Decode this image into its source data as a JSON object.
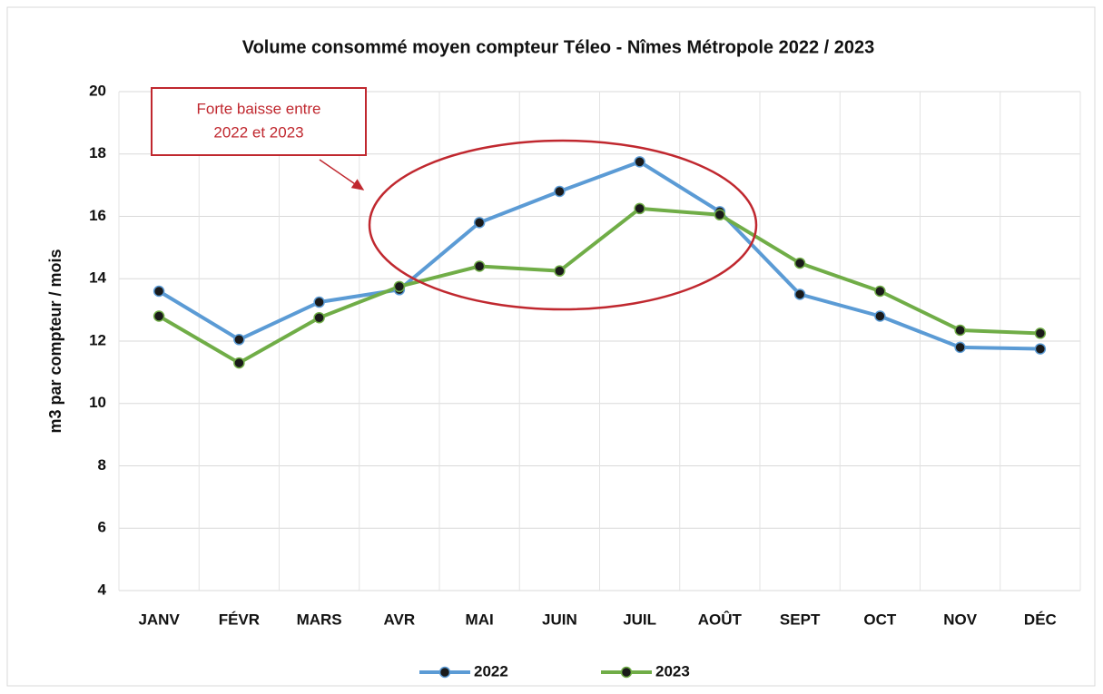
{
  "chart_data": {
    "type": "line",
    "title": "Volume consommé moyen compteur Téleo - Nîmes Métropole 2022 / 2023",
    "y_label": "m3 par compteur / mois",
    "annotation": [
      "Forte baisse entre",
      "2022 et 2023"
    ],
    "categories": [
      "JANV",
      "FÉVR",
      "MARS",
      "AVR",
      "MAI",
      "JUIN",
      "JUIL",
      "AOÛT",
      "SEPT",
      "OCT",
      "NOV",
      "DÉC"
    ],
    "series": [
      {
        "name": "2022",
        "color": "#5b9bd5",
        "values": [
          13.6,
          12.05,
          13.25,
          13.65,
          15.8,
          16.8,
          17.75,
          16.15,
          13.5,
          12.8,
          11.8,
          11.75
        ]
      },
      {
        "name": "2023",
        "color": "#70ad47",
        "values": [
          12.8,
          11.3,
          12.75,
          13.75,
          14.4,
          14.25,
          16.25,
          16.05,
          14.5,
          13.6,
          12.35,
          12.25
        ]
      }
    ],
    "ylim": [
      4,
      20
    ],
    "yticks": [
      4,
      6,
      8,
      10,
      12,
      14,
      16,
      18,
      20
    ],
    "grid": true,
    "legend": "bottom"
  }
}
